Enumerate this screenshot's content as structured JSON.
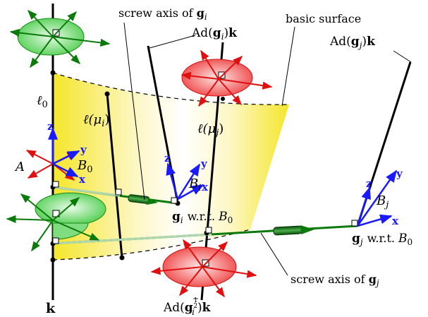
{
  "labels": {
    "k_bottom": "k",
    "ell0": "ℓ",
    "ell0_sub": "0",
    "ell_mu_i": "ℓ(μ",
    "ell_mu_i_sub": "i",
    "ell_mu_i_close": ")",
    "ell_mu_j": "ℓ(μ",
    "ell_mu_j_sub": "j",
    "ell_mu_j_close": ")",
    "A": "A",
    "B0": "B",
    "B0_sub": "0",
    "Bi": "B",
    "Bi_sub": "i",
    "Bj": "B",
    "Bj_sub": "j",
    "gi": "g",
    "gi_sub": "i",
    "gi_wrt": "w.r.t.",
    "gi_wrt_B": "B",
    "gi_wrt_B_sub": "0",
    "gj": "g",
    "gj_sub": "j",
    "gj_wrt": "w.r.t.",
    "gj_wrt_B": "B",
    "gj_wrt_B_sub": "0",
    "screw_axis_gi_prefix": "screw axis of ",
    "screw_axis_gi_g": "g",
    "screw_axis_gi_sub": "i",
    "screw_axis_gj_prefix": "screw axis of ",
    "screw_axis_gj_g": "g",
    "screw_axis_gj_sub": "j",
    "basic_surface": "basic surface",
    "ad_gi_k_pre": "Ad(",
    "ad_gi_k_g": "g",
    "ad_gi_k_sub": "i",
    "ad_gi_k_post": ")",
    "ad_gi_k_k": "k",
    "ad_gj_k_pre": "Ad(",
    "ad_gj_k_g": "g",
    "ad_gj_k_sub": "j",
    "ad_gj_k_post": ")",
    "ad_gj_k_k": "k",
    "ad_gi_half_pre": "Ad(",
    "ad_gi_half_g": "g",
    "ad_gi_half_frac_num": "1",
    "ad_gi_half_frac_den": "2",
    "ad_gi_half_sub": "i",
    "ad_gi_half_post": ")",
    "ad_gi_half_k": "k"
  },
  "axes": {
    "x": "x",
    "y": "y",
    "z": "z"
  },
  "colors": {
    "green": "#0a7a0a",
    "red": "#e01010",
    "blue": "#1a1aff",
    "yellow": "#f5e62a"
  }
}
